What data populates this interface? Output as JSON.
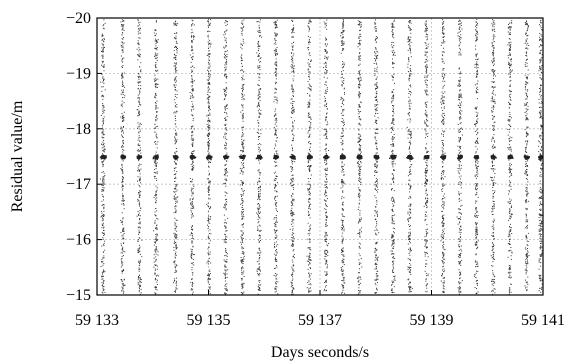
{
  "chart_data": {
    "type": "scatter",
    "title": "",
    "xlabel": "Days seconds/s",
    "ylabel": "Residual value/m",
    "xlim": [
      59133,
      59141
    ],
    "ylim": [
      -15,
      -20
    ],
    "y_axis_inverted": true,
    "grid": true,
    "legend": "none",
    "x_ticks": [
      {
        "value": 59133,
        "label": "59 133"
      },
      {
        "value": 59135,
        "label": "59 135"
      },
      {
        "value": 59137,
        "label": "59 137"
      },
      {
        "value": 59139,
        "label": "59 139"
      },
      {
        "value": 59141,
        "label": "59 141"
      }
    ],
    "y_ticks": [
      {
        "value": -15,
        "label": "−15"
      },
      {
        "value": -16,
        "label": "−16"
      },
      {
        "value": -17,
        "label": "−17"
      },
      {
        "value": -18,
        "label": "−18"
      },
      {
        "value": -19,
        "label": "−19"
      },
      {
        "value": -20,
        "label": "−20"
      }
    ],
    "series": [
      {
        "description_of_pattern": "dense vertical bands of residual samples spanning about -15 to -20 m, with a concentrated band near -17.5 m",
        "band_centers": [
          59133.1,
          59133.45,
          59133.75,
          59134.05,
          59134.4,
          59134.7,
          59135.0,
          59135.3,
          59135.6,
          59135.9,
          59136.2,
          59136.5,
          59136.8,
          59137.1,
          59137.4,
          59137.7,
          59138.0,
          59138.3,
          59138.6,
          59138.9,
          59139.2,
          59139.5,
          59139.8,
          59140.1,
          59140.4,
          59140.7,
          59140.95
        ],
        "dense_level": -17.5,
        "spread": [
          -15.0,
          -20.0
        ]
      }
    ]
  }
}
